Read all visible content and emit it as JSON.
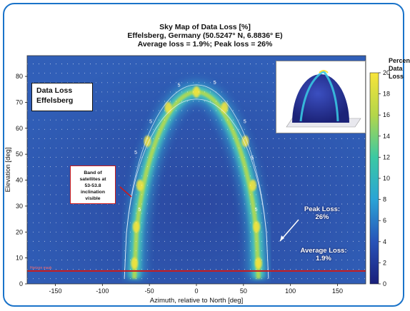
{
  "chart_data": {
    "type": "heatmap",
    "title": [
      "Sky Map of Data Loss [%]",
      "Effelsberg, Germany (50.5247° N, 6.8836° E)",
      "Average loss = 1.9%; Peak loss = 26%"
    ],
    "xlabel": "Azimuth, relative to North [deg]",
    "ylabel": "Elevation [deg]",
    "xlim": [
      -180,
      180
    ],
    "ylim": [
      0,
      88
    ],
    "x_ticks": [
      -150,
      -100,
      -50,
      0,
      50,
      100,
      150
    ],
    "y_ticks": [
      0,
      10,
      20,
      30,
      40,
      50,
      60,
      70,
      80
    ],
    "colorbar": {
      "label": [
        "Percent",
        "Data",
        "Loss"
      ],
      "range": [
        0,
        20
      ],
      "ticks": [
        0,
        2,
        4,
        6,
        8,
        10,
        12,
        14,
        16,
        18,
        20
      ]
    },
    "band": {
      "description_label": [
        "Band of",
        "satellites at",
        "53-53.8",
        "inclination",
        "visible"
      ],
      "left_base_azimuth": -66,
      "right_base_azimuth": 66,
      "apex_elevation": 74,
      "peak_loss": 26
    },
    "contour_labels": [
      "5",
      "5",
      "5",
      "5",
      "5",
      "5",
      "5",
      "5"
    ],
    "horizon_line_elevation": 5,
    "red_label": "Horizon mask",
    "annotations": {
      "box": [
        "Data Loss",
        "Effelsberg"
      ],
      "peak": [
        "Peak Loss:",
        "26%"
      ],
      "average": [
        "Average Loss:",
        "1.9%"
      ]
    },
    "average_loss": 1.9,
    "peak_loss": 26
  },
  "colors": {
    "low": "#27318f",
    "mid": "#2fa8c8",
    "high": "#f5e23c",
    "frame": "#1a73c9",
    "horizon": "#cc1a1a"
  }
}
